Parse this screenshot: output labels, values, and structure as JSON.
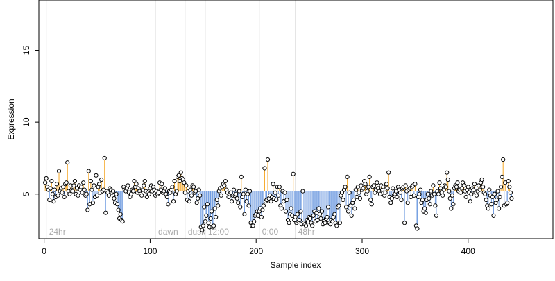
{
  "chart_data": {
    "type": "scatter",
    "xlabel": "Sample index",
    "ylabel": "Expression",
    "xlim": [
      -5,
      480
    ],
    "ylim": [
      1.9,
      18.5
    ],
    "baseline": 5.2,
    "x_ticks": [
      0,
      100,
      200,
      300,
      400
    ],
    "y_ticks": [
      5,
      10,
      15
    ],
    "colors": {
      "above": "#f5a623",
      "below": "#6f9be0",
      "marker_fill": "#ffffff",
      "marker_stroke": "#000000",
      "section_line": "#dddddd",
      "section_label": "#aaaaaa"
    },
    "sections": [
      {
        "x": 2,
        "label": "24hr"
      },
      {
        "x": 105,
        "label": "dawn"
      },
      {
        "x": 133,
        "label": "dusk"
      },
      {
        "x": 152,
        "label": "12:00"
      },
      {
        "x": 203,
        "label": "0:00"
      },
      {
        "x": 237,
        "label": "48hr"
      }
    ],
    "y": [
      5.8,
      6.1,
      5.5,
      5.3,
      4.6,
      5.4,
      5.9,
      5.0,
      4.5,
      5.3,
      4.8,
      5.7,
      4.9,
      6.6,
      5.2,
      5.4,
      5.1,
      5.5,
      4.8,
      5.7,
      5.8,
      7.2,
      5.2,
      5.0,
      5.6,
      5.3,
      5.2,
      5.6,
      5.9,
      5.0,
      5.4,
      4.9,
      5.6,
      5.3,
      5.5,
      5.1,
      5.8,
      5.3,
      4.9,
      5.0,
      3.9,
      6.6,
      4.3,
      5.9,
      5.3,
      4.4,
      5.6,
      4.8,
      6.3,
      4.9,
      5.5,
      5.7,
      5.1,
      6.0,
      5.2,
      5.3,
      7.5,
      3.7,
      5.2,
      5.1,
      4.9,
      5.4,
      5.3,
      5.1,
      5.2,
      4.7,
      4.4,
      5.0,
      4.3,
      3.9,
      3.3,
      3.6,
      3.2,
      3.1,
      5.5,
      5.3,
      5.2,
      5.4,
      5.6,
      5.1,
      4.8,
      5.0,
      5.3,
      5.2,
      5.9,
      5.5,
      5.7,
      5.1,
      5.4,
      5.2,
      5.0,
      4.9,
      5.3,
      5.6,
      5.9,
      5.2,
      4.8,
      5.1,
      5.0,
      5.4,
      5.6,
      5.2,
      5.5,
      5.3,
      4.9,
      5.2,
      5.0,
      5.1,
      5.8,
      5.3,
      5.7,
      5.1,
      5.2,
      5.4,
      5.0,
      4.8,
      4.3,
      5.2,
      5.1,
      5.3,
      5.5,
      4.5,
      5.9,
      5.0,
      5.2,
      6.2,
      6.3,
      5.9,
      6.5,
      6.1,
      6.0,
      5.8,
      5.1,
      5.6,
      4.6,
      5.2,
      4.5,
      5.3,
      4.9,
      5.6,
      5.5,
      5.1,
      5.2,
      4.4,
      4.7,
      5.3,
      4.9,
      2.7,
      2.5,
      2.8,
      4.1,
      3.1,
      3.5,
      4.3,
      3.0,
      2.7,
      3.3,
      3.8,
      2.7,
      2.8,
      4.0,
      3.4,
      4.6,
      4.2,
      5.2,
      5.4,
      4.9,
      5.5,
      5.7,
      5.6,
      5.9,
      5.3,
      5.1,
      4.8,
      5.0,
      5.1,
      4.5,
      4.9,
      5.3,
      4.9,
      5.0,
      4.7,
      4.4,
      5.2,
      4.1,
      6.2,
      4.8,
      5.0,
      3.6,
      5.3,
      4.5,
      5.0,
      4.2,
      5.2,
      3.0,
      2.8,
      2.8,
      3.1,
      3.5,
      3.6,
      3.8,
      3.5,
      3.8,
      4.0,
      3.4,
      3.9,
      4.2,
      6.8,
      4.5,
      4.6,
      7.4,
      4.7,
      4.9,
      4.5,
      4.8,
      5.7,
      4.7,
      5.1,
      4.6,
      5.5,
      4.9,
      5.5,
      4.2,
      4.0,
      5.2,
      4.5,
      5.1,
      3.8,
      4.6,
      3.2,
      3.0,
      3.6,
      4.0,
      3.5,
      6.4,
      3.2,
      3.4,
      3.0,
      3.6,
      3.1,
      3.2,
      3.8,
      2.9,
      5.2,
      3.0,
      2.9,
      2.8,
      3.2,
      3.1,
      3.4,
      3.3,
      3.0,
      2.8,
      3.5,
      3.8,
      3.1,
      3.7,
      3.2,
      4.0,
      3.6,
      3.3,
      3.8,
      2.9,
      3.1,
      3.0,
      3.3,
      3.4,
      4.1,
      3.0,
      2.9,
      3.2,
      3.1,
      3.4,
      3.6,
      3.0,
      2.8,
      4.1,
      4.2,
      3.0,
      4.9,
      5.1,
      4.6,
      5.3,
      5.5,
      4.1,
      6.2,
      3.8,
      5.1,
      4.2,
      3.5,
      4.4,
      4.6,
      4.0,
      5.3,
      4.8,
      5.5,
      5.1,
      4.7,
      5.6,
      5.3,
      5.4,
      5.9,
      5.7,
      5.0,
      5.2,
      5.5,
      6.2,
      4.6,
      4.3,
      5.5,
      5.6,
      5.1,
      5.3,
      5.8,
      5.4,
      5.2,
      5.0,
      5.6,
      5.3,
      5.5,
      4.9,
      5.1,
      5.7,
      5.4,
      6.5,
      4.8,
      4.4,
      4.7,
      5.4,
      4.9,
      5.0,
      5.2,
      4.8,
      5.5,
      5.3,
      5.1,
      4.6,
      5.4,
      5.5,
      3.0,
      5.6,
      5.2,
      4.4,
      5.3,
      5.4,
      4.8,
      5.5,
      5.6,
      4.9,
      5.7,
      2.8,
      2.6,
      4.8,
      5.0,
      5.3,
      4.4,
      4.6,
      3.8,
      4.0,
      3.7,
      4.6,
      5.0,
      4.7,
      4.3,
      5.2,
      4.9,
      5.6,
      5.0,
      4.2,
      3.5,
      5.2,
      5.0,
      5.8,
      5.4,
      5.1,
      4.9,
      5.3,
      5.6,
      5.5,
      6.5,
      6.0,
      5.2,
      4.7,
      4.0,
      4.9,
      4.3,
      5.4,
      5.6,
      5.5,
      5.8,
      5.2,
      5.3,
      5.1,
      5.4,
      5.8,
      5.6,
      5.2,
      4.8,
      5.3,
      5.5,
      5.1,
      4.5,
      5.0,
      5.4,
      5.3,
      5.7,
      5.1,
      4.9,
      5.2,
      5.6,
      5.3,
      5.8,
      6.0,
      5.5,
      5.1,
      5.0,
      4.6,
      4.2,
      4.0,
      5.3,
      4.9,
      4.3,
      4.8,
      3.5,
      5.0,
      4.4,
      4.6,
      5.2,
      4.0,
      4.8,
      5.5,
      6.2,
      7.4,
      4.2,
      5.8,
      4.3,
      4.4,
      5.9,
      5.5,
      5.1,
      4.7
    ]
  }
}
